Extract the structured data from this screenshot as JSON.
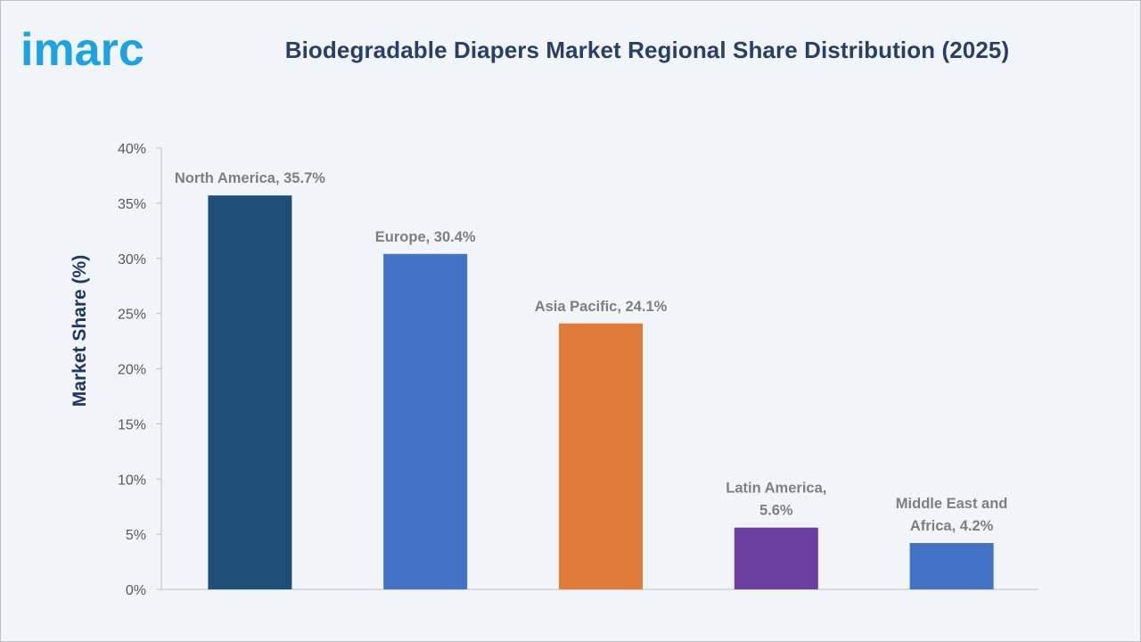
{
  "brand": {
    "logo_text": "imarc"
  },
  "chart_data": {
    "type": "bar",
    "title": "Biodegradable Diapers Market Regional Share Distribution (2025)",
    "xlabel": "",
    "ylabel": "Market Share (%)",
    "ylim": [
      0,
      40
    ],
    "yticks": [
      "0%",
      "5%",
      "10%",
      "15%",
      "20%",
      "25%",
      "30%",
      "35%",
      "40%"
    ],
    "categories": [
      "North America",
      "Europe",
      "Asia Pacific",
      "Latin America",
      "Middle East and Africa"
    ],
    "values": [
      35.7,
      30.4,
      24.1,
      5.6,
      4.2
    ],
    "data_labels": [
      [
        "North America, 35.7%"
      ],
      [
        "Europe, 30.4%"
      ],
      [
        "Asia Pacific, 24.1%"
      ],
      [
        "Latin America,",
        "5.6%"
      ],
      [
        "Middle East and",
        "Africa, 4.2%"
      ]
    ],
    "colors": [
      "#1f4e79",
      "#4472c4",
      "#e07b39",
      "#6b3fa0",
      "#4472c4"
    ],
    "grid": false,
    "legend": "none"
  }
}
